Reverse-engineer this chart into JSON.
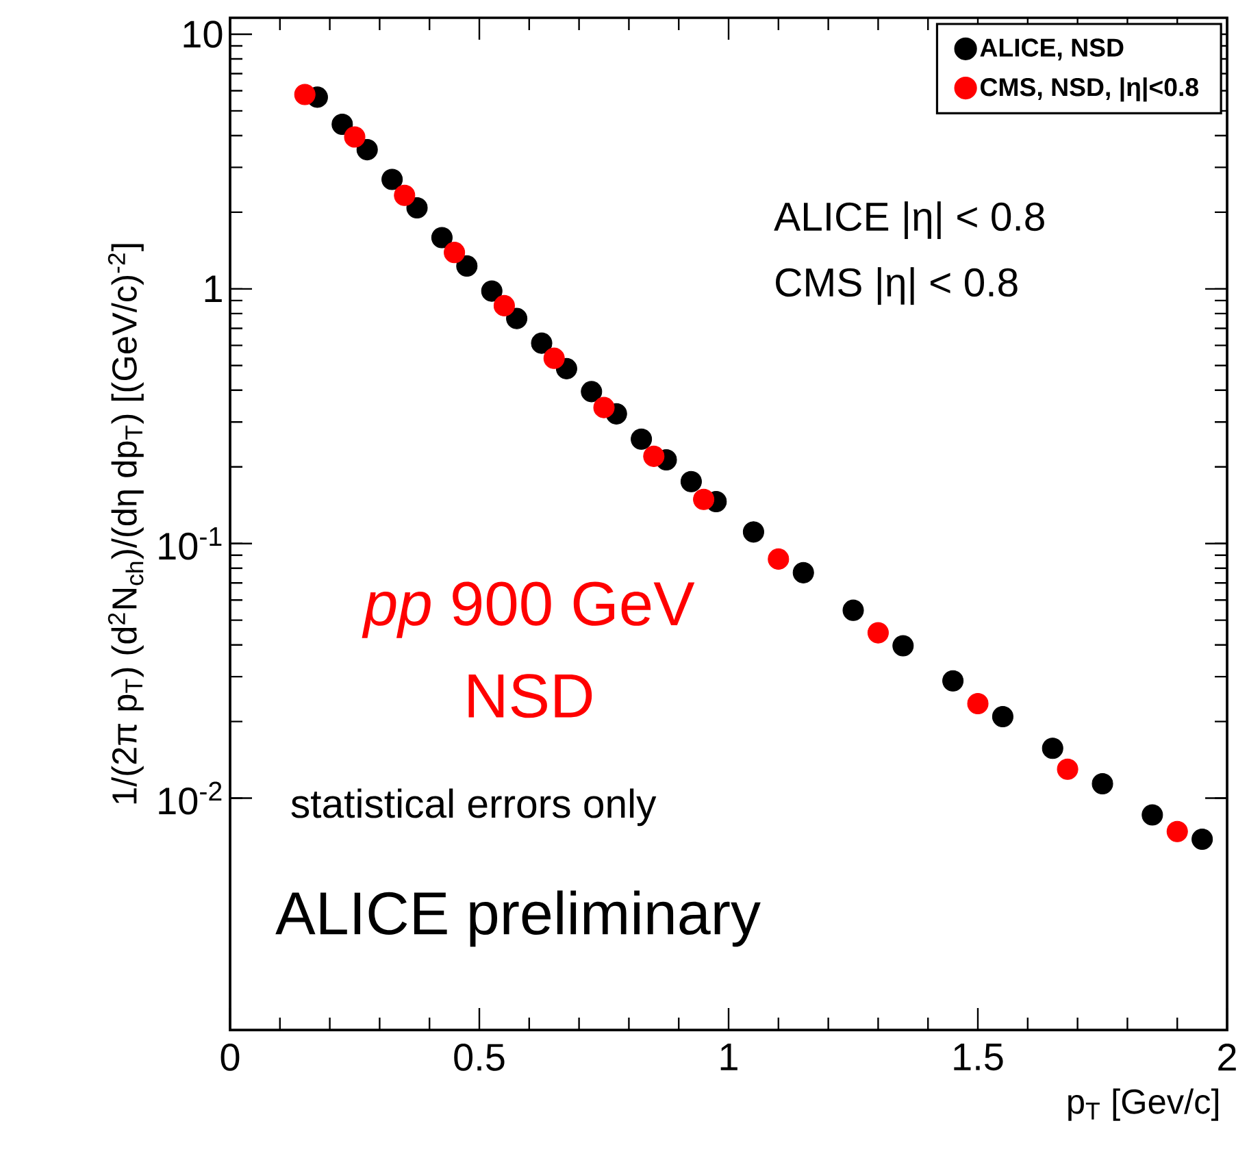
{
  "chart_data": {
    "type": "scatter",
    "xlabel": "p$_{T}$ [Gev/c]",
    "ylabel": "1/(2π p$_{T}$) (d$^{2}$N$_{ch}$)/(dη dp$_{T}$) [(GeV/c)$^{-2}$]",
    "log": "y",
    "grid": false,
    "legend": "top right",
    "marker": "circle",
    "xlim": [
      0,
      2
    ],
    "ylim": [
      0.00123,
      11.6
    ],
    "xticks": [
      0,
      0.5,
      1,
      1.5,
      2
    ],
    "yticks": [
      {
        "value": 0.01,
        "label": "10$^{-2}$"
      },
      {
        "value": 0.1,
        "label": "10$^{-1}$"
      },
      {
        "value": 1,
        "label": "1"
      },
      {
        "value": 10,
        "label": "10"
      }
    ],
    "series": [
      {
        "name": "ALICE, NSD",
        "color": "#000000",
        "x": [
          0.175,
          0.225,
          0.275,
          0.325,
          0.375,
          0.425,
          0.475,
          0.525,
          0.575,
          0.625,
          0.675,
          0.725,
          0.775,
          0.825,
          0.875,
          0.925,
          0.975,
          1.05,
          1.15,
          1.25,
          1.35,
          1.45,
          1.55,
          1.65,
          1.75,
          1.85,
          1.95
        ],
        "values": [
          5.66,
          4.43,
          3.52,
          2.69,
          2.08,
          1.59,
          1.23,
          0.98,
          0.765,
          0.612,
          0.486,
          0.395,
          0.323,
          0.257,
          0.213,
          0.175,
          0.146,
          0.111,
          0.0768,
          0.0547,
          0.0397,
          0.0289,
          0.0209,
          0.0157,
          0.0114,
          0.0086,
          0.0069
        ]
      },
      {
        "name": "CMS, NSD, |η|<0.8",
        "color": "#ff0000",
        "x": [
          0.15,
          0.25,
          0.35,
          0.45,
          0.55,
          0.65,
          0.75,
          0.85,
          0.95,
          1.1,
          1.3,
          1.5,
          1.68,
          1.9
        ],
        "values": [
          5.8,
          3.95,
          2.33,
          1.39,
          0.859,
          0.534,
          0.342,
          0.22,
          0.149,
          0.0869,
          0.0446,
          0.0235,
          0.013,
          0.0074
        ]
      }
    ],
    "annotations": [
      "ALICE |η| < 0.8",
      "CMS |η| < 0.8",
      "*pp* 900 GeV",
      "NSD",
      "statistical errors only",
      "ALICE preliminary"
    ]
  }
}
